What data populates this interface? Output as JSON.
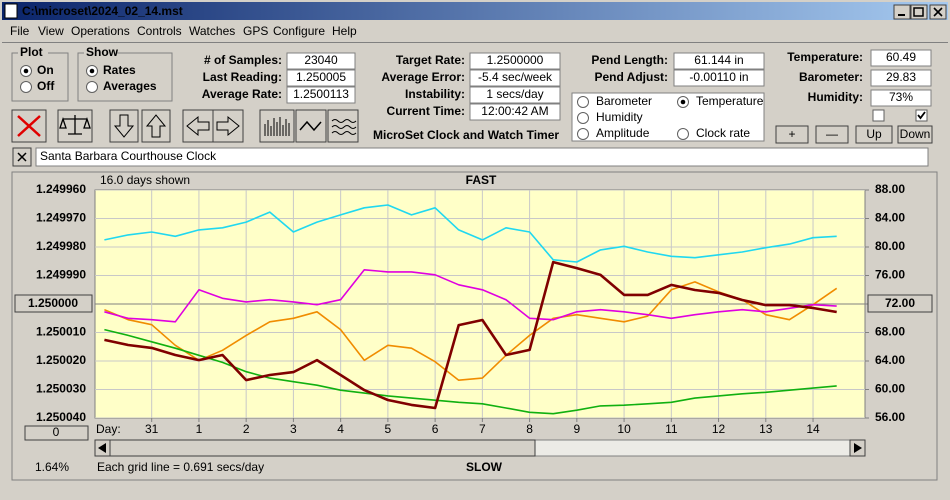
{
  "window": {
    "title": "C:\\microset\\2024_02_14.mst"
  },
  "menu": [
    "File",
    "View",
    "Operations",
    "Controls",
    "Watches",
    "GPS",
    "Configure",
    "Help"
  ],
  "plot_group": {
    "title": "Plot",
    "options": [
      "On",
      "Off"
    ],
    "selected": 0
  },
  "show_group": {
    "title": "Show",
    "options": [
      "Rates",
      "Averages"
    ],
    "selected": 0
  },
  "readings": [
    {
      "label": "# of Samples:",
      "value": "23040"
    },
    {
      "label": "Last Reading:",
      "value": "1.250005"
    },
    {
      "label": "Average Rate:",
      "value": "1.2500113"
    }
  ],
  "timer": [
    {
      "label": "Target Rate:",
      "value": "1.2500000"
    },
    {
      "label": "Average Error:",
      "value": "-5.4 sec/week"
    },
    {
      "label": "Instability:",
      "value": "1 secs/day"
    },
    {
      "label": "Current Time:",
      "value": "12:00:42 AM"
    }
  ],
  "app_name": "MicroSet Clock and Watch Timer",
  "pendulum": [
    {
      "label": "Pend Length:",
      "value": "61.144 in"
    },
    {
      "label": "Pend Adjust:",
      "value": "-0.00110 in"
    }
  ],
  "environment": [
    {
      "label": "Temperature:",
      "value": "60.49"
    },
    {
      "label": "Barometer:",
      "value": "29.83"
    },
    {
      "label": "Humidity:",
      "value": "73%"
    }
  ],
  "checkboxes": [
    false,
    true
  ],
  "scale_buttons": [
    "+",
    "—",
    "Up",
    "Down"
  ],
  "watch_name": "Santa Barbara Courthouse Clock",
  "chart_data": {
    "type": "line",
    "annotations": {
      "days_shown": "16.0 days shown",
      "top": "FAST",
      "bottom": "SLOW",
      "day_label": "Day:",
      "percent": "1.64%",
      "grid_note": "Each grid line = 0.691 secs/day",
      "offset_button": "0"
    },
    "x": [
      -1,
      -0.5,
      0,
      0.5,
      1,
      1.5,
      2,
      2.5,
      3,
      3.5,
      4,
      4.5,
      5,
      5.5,
      6,
      6.5,
      7,
      7.5,
      8,
      8.5,
      9,
      9.5,
      10,
      10.5,
      11,
      11.5,
      12,
      12.5,
      13,
      13.5,
      14,
      14.5
    ],
    "xlim": [
      -1.2,
      15.1
    ],
    "xticks": [
      {
        "value": 0,
        "label": "31"
      },
      1,
      2,
      3,
      4,
      5,
      6,
      7,
      8,
      9,
      10,
      11,
      12,
      13,
      14
    ],
    "ylim": [
      1.25004,
      1.24996
    ],
    "yticks": [
      {
        "value": 1.24996,
        "label": "1.249960"
      },
      {
        "value": 1.24997,
        "label": "1.249970"
      },
      {
        "value": 1.24998,
        "label": "1.249980"
      },
      {
        "value": 1.24999,
        "label": "1.249990"
      },
      {
        "value": 1.25,
        "label": "1.250000"
      },
      {
        "value": 1.25001,
        "label": "1.250010"
      },
      {
        "value": 1.25002,
        "label": "1.250020"
      },
      {
        "value": 1.25003,
        "label": "1.250030"
      },
      {
        "value": 1.25004,
        "label": "1.250040"
      }
    ],
    "y2lim": [
      56,
      88
    ],
    "y2ticks": [
      {
        "value": 88,
        "label": "88.00"
      },
      {
        "value": 84,
        "label": "84.00"
      },
      {
        "value": 80,
        "label": "80.00"
      },
      {
        "value": 76,
        "label": "76.00"
      },
      {
        "value": 72,
        "label": "72.00"
      },
      {
        "value": 68,
        "label": "68.00"
      },
      {
        "value": 64,
        "label": "64.00"
      },
      {
        "value": 60,
        "label": "60.00"
      },
      {
        "value": 56,
        "label": "56.00"
      }
    ],
    "grid": true,
    "selected_series": 3,
    "series": [
      {
        "name": "Barometer",
        "color": "#f08c00",
        "axis": "y2",
        "values": [
          71.2,
          69.8,
          69.1,
          66.2,
          64.1,
          65.5,
          67.6,
          69.5,
          70.0,
          70.9,
          68.4,
          64.1,
          66.2,
          65.8,
          63.9,
          61.3,
          61.6,
          64.8,
          67.6,
          70.0,
          70.5,
          70.0,
          69.5,
          70.3,
          74.0,
          75.1,
          73.7,
          72.6,
          70.5,
          69.8,
          71.9,
          74.2
        ]
      },
      {
        "name": "Humidity",
        "color": "#e000e0",
        "axis": "y2",
        "values": [
          70.9,
          70.0,
          69.8,
          69.5,
          74.0,
          72.8,
          72.3,
          72.6,
          72.3,
          71.9,
          72.6,
          76.8,
          76.5,
          76.5,
          76.1,
          74.7,
          74.0,
          72.6,
          70.0,
          69.8,
          70.9,
          71.2,
          70.9,
          70.5,
          70.0,
          70.5,
          70.9,
          71.2,
          70.9,
          71.4,
          71.9,
          71.7
        ]
      },
      {
        "name": "Amplitude",
        "color": "#20d8f0",
        "axis": "y2",
        "values": [
          81.0,
          81.7,
          82.1,
          81.5,
          82.4,
          82.7,
          83.5,
          84.9,
          82.1,
          83.5,
          84.5,
          85.5,
          85.9,
          84.5,
          85.5,
          82.4,
          81.0,
          82.7,
          82.1,
          78.2,
          77.9,
          79.6,
          80.1,
          79.3,
          78.7,
          78.5,
          78.9,
          79.3,
          79.9,
          80.4,
          81.3,
          81.5
        ]
      },
      {
        "name": "Temperature",
        "color": "#10b010",
        "axis": "y2",
        "values": [
          68.4,
          67.6,
          66.7,
          65.8,
          64.8,
          63.8,
          62.5,
          61.6,
          61.1,
          60.6,
          59.9,
          59.5,
          59.1,
          58.8,
          58.5,
          58.2,
          58.0,
          57.4,
          56.8,
          56.6,
          57.1,
          57.7,
          57.8,
          58.0,
          58.2,
          58.8,
          59.1,
          59.4,
          59.6,
          59.9,
          60.2,
          60.5
        ]
      },
      {
        "name": "Clock rate",
        "color": "#800000",
        "axis": "y",
        "values": [
          1.2500126,
          1.2500144,
          1.2500154,
          1.2500179,
          1.2500197,
          1.2500179,
          1.2500267,
          1.2500249,
          1.2500239,
          1.2500197,
          1.2500249,
          1.2500302,
          1.2500337,
          1.2500354,
          1.2500365,
          1.2500074,
          1.2500056,
          1.2500179,
          1.2500161,
          1.2499853,
          1.2499874,
          1.2499898,
          1.2499968,
          1.2499968,
          1.2499933,
          1.2499951,
          1.2499961,
          1.2499986,
          1.2500004,
          1.2500004,
          1.2500014,
          1.2500028
        ]
      }
    ]
  }
}
